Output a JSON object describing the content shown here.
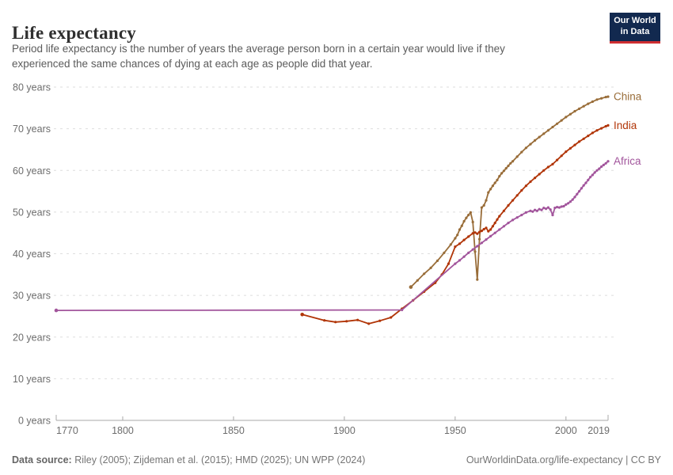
{
  "header": {
    "title": "Life expectancy",
    "subtitle_lines": [
      "Period life expectancy is the number of years the average person born in a certain year would live if they",
      "experienced the same chances of dying at each age as people did that year."
    ],
    "logo": {
      "line1": "Our World",
      "line2": "in Data"
    }
  },
  "footer": {
    "source_label": "Data source:",
    "source_text": " Riley (2005); Zijdeman et al. (2015); HMD (2025); UN WPP (2024)",
    "link_text": "OurWorldinData.org/life-expectancy | CC BY"
  },
  "colors": {
    "china": "#996D39",
    "india": "#B13507",
    "africa": "#A2559C",
    "grid": "#dedede",
    "axis": "#a8a8a8",
    "logo_bg": "#12294f",
    "logo_stripe": "#cf2e31"
  },
  "chart_data": {
    "type": "line",
    "title": "Life expectancy",
    "xlabel": "",
    "ylabel": "years",
    "grid": "dashed-horizontal",
    "legend_position": "line-end-labels",
    "x_axis": {
      "range": [
        1770,
        2019
      ],
      "ticks": [
        1770,
        1800,
        1850,
        1900,
        1950,
        2000,
        2019
      ]
    },
    "y_axis": {
      "range": [
        0,
        80
      ],
      "ticks": [
        0,
        10,
        20,
        30,
        40,
        50,
        60,
        70,
        80
      ],
      "tick_suffix": " years"
    },
    "series": [
      {
        "name": "China",
        "color": "#996D39",
        "points": [
          [
            1930,
            32.0
          ],
          [
            1933,
            33.6
          ],
          [
            1936,
            35.2
          ],
          [
            1939,
            36.6
          ],
          [
            1942,
            38.3
          ],
          [
            1945,
            40.2
          ],
          [
            1948,
            42.2
          ],
          [
            1950,
            43.7
          ],
          [
            1951,
            44.5
          ],
          [
            1952,
            45.8
          ],
          [
            1953,
            46.7
          ],
          [
            1954,
            47.8
          ],
          [
            1955,
            48.6
          ],
          [
            1956,
            49.3
          ],
          [
            1957,
            49.9
          ],
          [
            1958,
            47.6
          ],
          [
            1959,
            40.5
          ],
          [
            1960,
            33.8
          ],
          [
            1961,
            43.5
          ],
          [
            1962,
            51.1
          ],
          [
            1963,
            51.6
          ],
          [
            1964,
            52.8
          ],
          [
            1965,
            54.7
          ],
          [
            1966,
            55.5
          ],
          [
            1967,
            56.3
          ],
          [
            1968,
            57.0
          ],
          [
            1969,
            57.7
          ],
          [
            1970,
            58.6
          ],
          [
            1971,
            59.3
          ],
          [
            1972,
            59.9
          ],
          [
            1973,
            60.5
          ],
          [
            1974,
            61.1
          ],
          [
            1975,
            61.7
          ],
          [
            1976,
            62.2
          ],
          [
            1978,
            63.3
          ],
          [
            1980,
            64.4
          ],
          [
            1982,
            65.4
          ],
          [
            1984,
            66.3
          ],
          [
            1986,
            67.2
          ],
          [
            1988,
            68.0
          ],
          [
            1990,
            68.8
          ],
          [
            1992,
            69.6
          ],
          [
            1994,
            70.4
          ],
          [
            1996,
            71.2
          ],
          [
            1998,
            72.0
          ],
          [
            2000,
            72.8
          ],
          [
            2002,
            73.5
          ],
          [
            2004,
            74.2
          ],
          [
            2006,
            74.8
          ],
          [
            2008,
            75.4
          ],
          [
            2010,
            76.0
          ],
          [
            2012,
            76.5
          ],
          [
            2014,
            77.0
          ],
          [
            2016,
            77.3
          ],
          [
            2018,
            77.6
          ],
          [
            2019,
            77.7
          ]
        ]
      },
      {
        "name": "India",
        "color": "#B13507",
        "points": [
          [
            1881,
            25.4
          ],
          [
            1891,
            24.0
          ],
          [
            1896,
            23.6
          ],
          [
            1901,
            23.8
          ],
          [
            1906,
            24.1
          ],
          [
            1911,
            23.2
          ],
          [
            1916,
            23.9
          ],
          [
            1921,
            24.7
          ],
          [
            1926,
            26.8
          ],
          [
            1931,
            28.8
          ],
          [
            1936,
            30.9
          ],
          [
            1941,
            33.0
          ],
          [
            1944,
            35.0
          ],
          [
            1947,
            37.6
          ],
          [
            1950,
            41.7
          ],
          [
            1952,
            42.4
          ],
          [
            1954,
            43.3
          ],
          [
            1956,
            44.1
          ],
          [
            1958,
            44.9
          ],
          [
            1959,
            45.1
          ],
          [
            1960,
            44.8
          ],
          [
            1961,
            45.2
          ],
          [
            1962,
            45.5
          ],
          [
            1963,
            45.9
          ],
          [
            1964,
            46.2
          ],
          [
            1965,
            45.4
          ],
          [
            1966,
            45.8
          ],
          [
            1967,
            46.6
          ],
          [
            1968,
            47.4
          ],
          [
            1969,
            48.2
          ],
          [
            1970,
            49.0
          ],
          [
            1972,
            50.3
          ],
          [
            1974,
            51.6
          ],
          [
            1976,
            52.8
          ],
          [
            1978,
            54.0
          ],
          [
            1980,
            55.2
          ],
          [
            1982,
            56.3
          ],
          [
            1984,
            57.3
          ],
          [
            1986,
            58.2
          ],
          [
            1988,
            59.1
          ],
          [
            1990,
            60.0
          ],
          [
            1992,
            60.8
          ],
          [
            1994,
            61.5
          ],
          [
            1996,
            62.5
          ],
          [
            1998,
            63.5
          ],
          [
            2000,
            64.5
          ],
          [
            2002,
            65.3
          ],
          [
            2004,
            66.1
          ],
          [
            2006,
            66.9
          ],
          [
            2008,
            67.6
          ],
          [
            2010,
            68.3
          ],
          [
            2012,
            69.0
          ],
          [
            2014,
            69.6
          ],
          [
            2016,
            70.1
          ],
          [
            2018,
            70.6
          ],
          [
            2019,
            70.8
          ]
        ]
      },
      {
        "name": "Africa",
        "color": "#A2559C",
        "points": [
          [
            1770,
            26.4
          ],
          [
            1926,
            26.5
          ],
          [
            1950,
            37.6
          ],
          [
            1952,
            38.4
          ],
          [
            1954,
            39.3
          ],
          [
            1956,
            40.2
          ],
          [
            1958,
            41.0
          ],
          [
            1960,
            41.8
          ],
          [
            1962,
            42.6
          ],
          [
            1964,
            43.4
          ],
          [
            1966,
            44.2
          ],
          [
            1968,
            45.0
          ],
          [
            1970,
            45.8
          ],
          [
            1972,
            46.6
          ],
          [
            1974,
            47.4
          ],
          [
            1976,
            48.1
          ],
          [
            1978,
            48.7
          ],
          [
            1980,
            49.3
          ],
          [
            1982,
            49.9
          ],
          [
            1984,
            50.3
          ],
          [
            1985,
            50.1
          ],
          [
            1986,
            50.5
          ],
          [
            1987,
            50.3
          ],
          [
            1988,
            50.7
          ],
          [
            1989,
            50.5
          ],
          [
            1990,
            51.0
          ],
          [
            1991,
            50.8
          ],
          [
            1992,
            51.1
          ],
          [
            1993,
            50.6
          ],
          [
            1994,
            49.3
          ],
          [
            1995,
            51.0
          ],
          [
            1996,
            51.2
          ],
          [
            1997,
            51.1
          ],
          [
            1998,
            51.3
          ],
          [
            1999,
            51.4
          ],
          [
            2000,
            51.8
          ],
          [
            2001,
            52.1
          ],
          [
            2002,
            52.5
          ],
          [
            2003,
            53.0
          ],
          [
            2004,
            53.6
          ],
          [
            2005,
            54.3
          ],
          [
            2006,
            55.0
          ],
          [
            2007,
            55.7
          ],
          [
            2008,
            56.4
          ],
          [
            2009,
            57.0
          ],
          [
            2010,
            57.7
          ],
          [
            2011,
            58.4
          ],
          [
            2012,
            58.9
          ],
          [
            2013,
            59.5
          ],
          [
            2014,
            60.0
          ],
          [
            2015,
            60.4
          ],
          [
            2016,
            60.9
          ],
          [
            2017,
            61.3
          ],
          [
            2018,
            61.7
          ],
          [
            2019,
            62.2
          ]
        ]
      }
    ]
  }
}
